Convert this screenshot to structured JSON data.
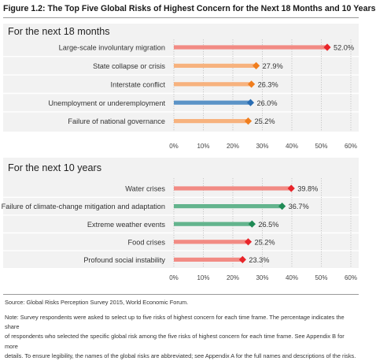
{
  "figure_title": "Figure 1.2: The Top Five Global Risks of Highest Concern for the Next 18 Months and 10 Years",
  "colors": {
    "societal": "#f28b84",
    "geopolitical": "#f7b27e",
    "economic": "#5b93c7",
    "environmental": "#63b48d",
    "marker_red": "#e8252a",
    "marker_orange": "#f07d1d",
    "marker_blue": "#2a6db3",
    "marker_green": "#1f8a55",
    "panel_bg": "#f2f2f2"
  },
  "chart_data": [
    {
      "type": "bar",
      "title": "For the next 18 months",
      "xlim": [
        0,
        60
      ],
      "xticks": [
        "0%",
        "10%",
        "20%",
        "30%",
        "40%",
        "50%",
        "60%"
      ],
      "grid": true,
      "categories": [
        "Large-scale involuntary migration",
        "State collapse or crisis",
        "Interstate conflict",
        "Unemployment or underemployment",
        "Failure of national governance"
      ],
      "values": [
        52.0,
        27.9,
        26.3,
        26.0,
        25.2
      ],
      "labels": [
        "52.0%",
        "27.9%",
        "26.3%",
        "26.0%",
        "25.2%"
      ],
      "bar_colors": [
        "#f28b84",
        "#f7b27e",
        "#f7b27e",
        "#5b93c7",
        "#f7b27e"
      ],
      "marker_colors": [
        "#e8252a",
        "#f07d1d",
        "#f07d1d",
        "#2a6db3",
        "#f07d1d"
      ]
    },
    {
      "type": "bar",
      "title": "For the next 10 years",
      "xlim": [
        0,
        60
      ],
      "xticks": [
        "0%",
        "10%",
        "20%",
        "30%",
        "40%",
        "50%",
        "60%"
      ],
      "grid": true,
      "categories": [
        "Water crises",
        "Failure of climate-change mitigation and adaptation",
        "Extreme weather events",
        "Food crises",
        "Profound social instability"
      ],
      "values": [
        39.8,
        36.7,
        26.5,
        25.2,
        23.3
      ],
      "labels": [
        "39.8%",
        "36.7%",
        "26.5%",
        "25.2%",
        "23.3%"
      ],
      "bar_colors": [
        "#f28b84",
        "#63b48d",
        "#63b48d",
        "#f28b84",
        "#f28b84"
      ],
      "marker_colors": [
        "#e8252a",
        "#1f8a55",
        "#1f8a55",
        "#e8252a",
        "#e8252a"
      ]
    }
  ],
  "source": "Source: Global Risks Perception Survey 2015, World Economic Forum.",
  "note_lines": [
    "Note: Survey respondents were asked to select up to five risks of highest concern for each time frame. The percentage indicates the share",
    "of respondents who selected the specific global risk among the five risks of highest concern for each time frame. See Appendix B for more",
    "details. To ensure legibility, the names of the global risks are abbreviated; see Appendix A for the full names and descriptions of the risks."
  ]
}
